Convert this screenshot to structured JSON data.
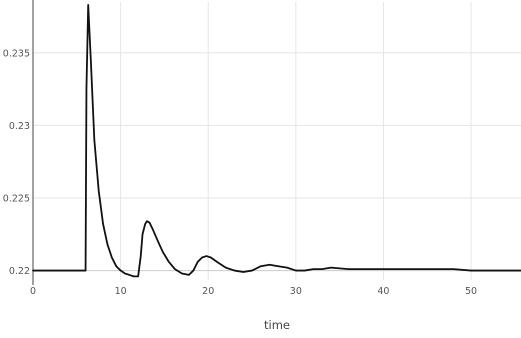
{
  "chart_data": {
    "type": "line",
    "title": "",
    "xlabel": "time",
    "ylabel": "",
    "xlim": [
      0,
      55.7
    ],
    "ylim": [
      0.21935,
      0.2385
    ],
    "grid": true,
    "x_ticks": [
      0,
      10,
      20,
      30,
      40,
      50
    ],
    "y_ticks": [
      0.22,
      0.225,
      0.23,
      0.235
    ],
    "x_tick_labels": [
      "0",
      "10",
      "20",
      "30",
      "40",
      "50"
    ],
    "y_tick_labels": [
      "0.22",
      "0.225",
      "0.23",
      "0.235"
    ],
    "line_color": "#111111",
    "series": [
      {
        "x": [
          0,
          6.0,
          6.1,
          6.3,
          6.6,
          7.0,
          7.5,
          8.0,
          8.5,
          9.0,
          9.5,
          10.0,
          10.5,
          11.0,
          11.5,
          12.0,
          12.3,
          12.5,
          12.8,
          13.0,
          13.3,
          13.7,
          14.2,
          14.8,
          15.5,
          16.2,
          17.0,
          17.8,
          18.3,
          18.8,
          19.3,
          19.8,
          20.3,
          21.0,
          22.0,
          23.0,
          24.0,
          25.0,
          26.0,
          27.0,
          28.0,
          29.0,
          30.0,
          31.0,
          32.0,
          33.0,
          34.0,
          36.0,
          38.0,
          40.0,
          42.0,
          44.0,
          46.0,
          48.0,
          50.0,
          52.0,
          55.7
        ],
        "y": [
          0.22,
          0.22,
          0.2325,
          0.2383,
          0.2345,
          0.229,
          0.2255,
          0.2232,
          0.2218,
          0.2209,
          0.2203,
          0.22,
          0.2198,
          0.2197,
          0.2196,
          0.2196,
          0.221,
          0.2225,
          0.2232,
          0.2234,
          0.2233,
          0.2228,
          0.2221,
          0.2213,
          0.2206,
          0.2201,
          0.2198,
          0.2197,
          0.22,
          0.2206,
          0.2209,
          0.221,
          0.2209,
          0.2206,
          0.2202,
          0.22,
          0.2199,
          0.22,
          0.2203,
          0.2204,
          0.2203,
          0.2202,
          0.22,
          0.22,
          0.2201,
          0.2201,
          0.2202,
          0.2201,
          0.2201,
          0.2201,
          0.2201,
          0.2201,
          0.2201,
          0.2201,
          0.22,
          0.22,
          0.22
        ]
      }
    ]
  }
}
